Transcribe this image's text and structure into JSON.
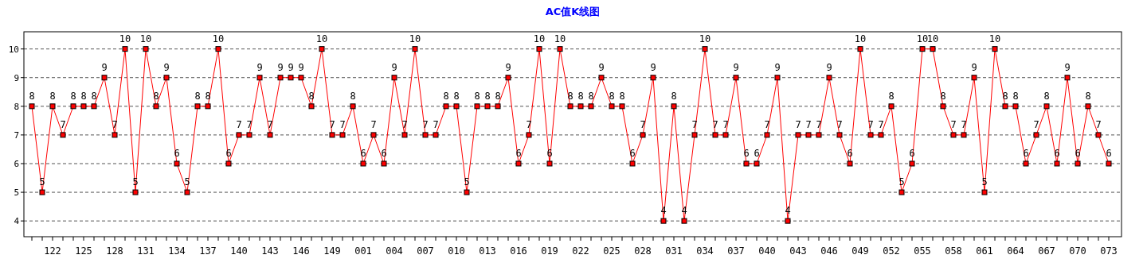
{
  "chart_data": {
    "type": "line",
    "title": "AC值K线图",
    "categories": [
      null,
      null,
      "122",
      null,
      null,
      "125",
      null,
      null,
      "128",
      null,
      null,
      "131",
      null,
      null,
      "134",
      null,
      null,
      "137",
      null,
      null,
      "140",
      null,
      null,
      "143",
      null,
      null,
      "146",
      null,
      null,
      "149",
      null,
      null,
      "001",
      null,
      null,
      "004",
      null,
      null,
      "007",
      null,
      null,
      "010",
      null,
      null,
      "013",
      null,
      null,
      "016",
      null,
      null,
      "019",
      null,
      null,
      "022",
      null,
      null,
      "025",
      null,
      null,
      "028",
      null,
      null,
      "031",
      null,
      null,
      "034",
      null,
      null,
      "037",
      null,
      null,
      "040",
      null,
      null,
      "043",
      null,
      null,
      "046",
      null,
      null,
      "049",
      null,
      null,
      "052",
      null,
      null,
      "055",
      null,
      null,
      "058",
      null,
      null,
      "061",
      null,
      null,
      "064",
      null,
      null,
      "067",
      null,
      null,
      "070",
      null,
      null,
      "073"
    ],
    "values": [
      8,
      5,
      8,
      7,
      8,
      8,
      8,
      9,
      7,
      10,
      5,
      10,
      8,
      9,
      6,
      5,
      8,
      8,
      10,
      6,
      7,
      7,
      9,
      7,
      9,
      9,
      9,
      8,
      10,
      7,
      7,
      8,
      6,
      7,
      6,
      9,
      7,
      10,
      7,
      7,
      8,
      8,
      5,
      8,
      8,
      8,
      9,
      6,
      7,
      10,
      6,
      10,
      8,
      8,
      8,
      9,
      8,
      8,
      6,
      7,
      9,
      4,
      8,
      4,
      7,
      10,
      7,
      7,
      9,
      6,
      6,
      7,
      9,
      4,
      7,
      7,
      7,
      9,
      7,
      6,
      10,
      7,
      7,
      8,
      5,
      6,
      10,
      10,
      8,
      7,
      7,
      9,
      5,
      10,
      8,
      8,
      6,
      7,
      8,
      6,
      9,
      6,
      8,
      7,
      6
    ],
    "color": "#ff0000",
    "ylim": [
      3.45,
      10.6
    ],
    "yticks": [
      4,
      5,
      6,
      7,
      8,
      9,
      10
    ],
    "grid": "y",
    "data_labels": true,
    "marker": "square",
    "line_style": "solid"
  }
}
